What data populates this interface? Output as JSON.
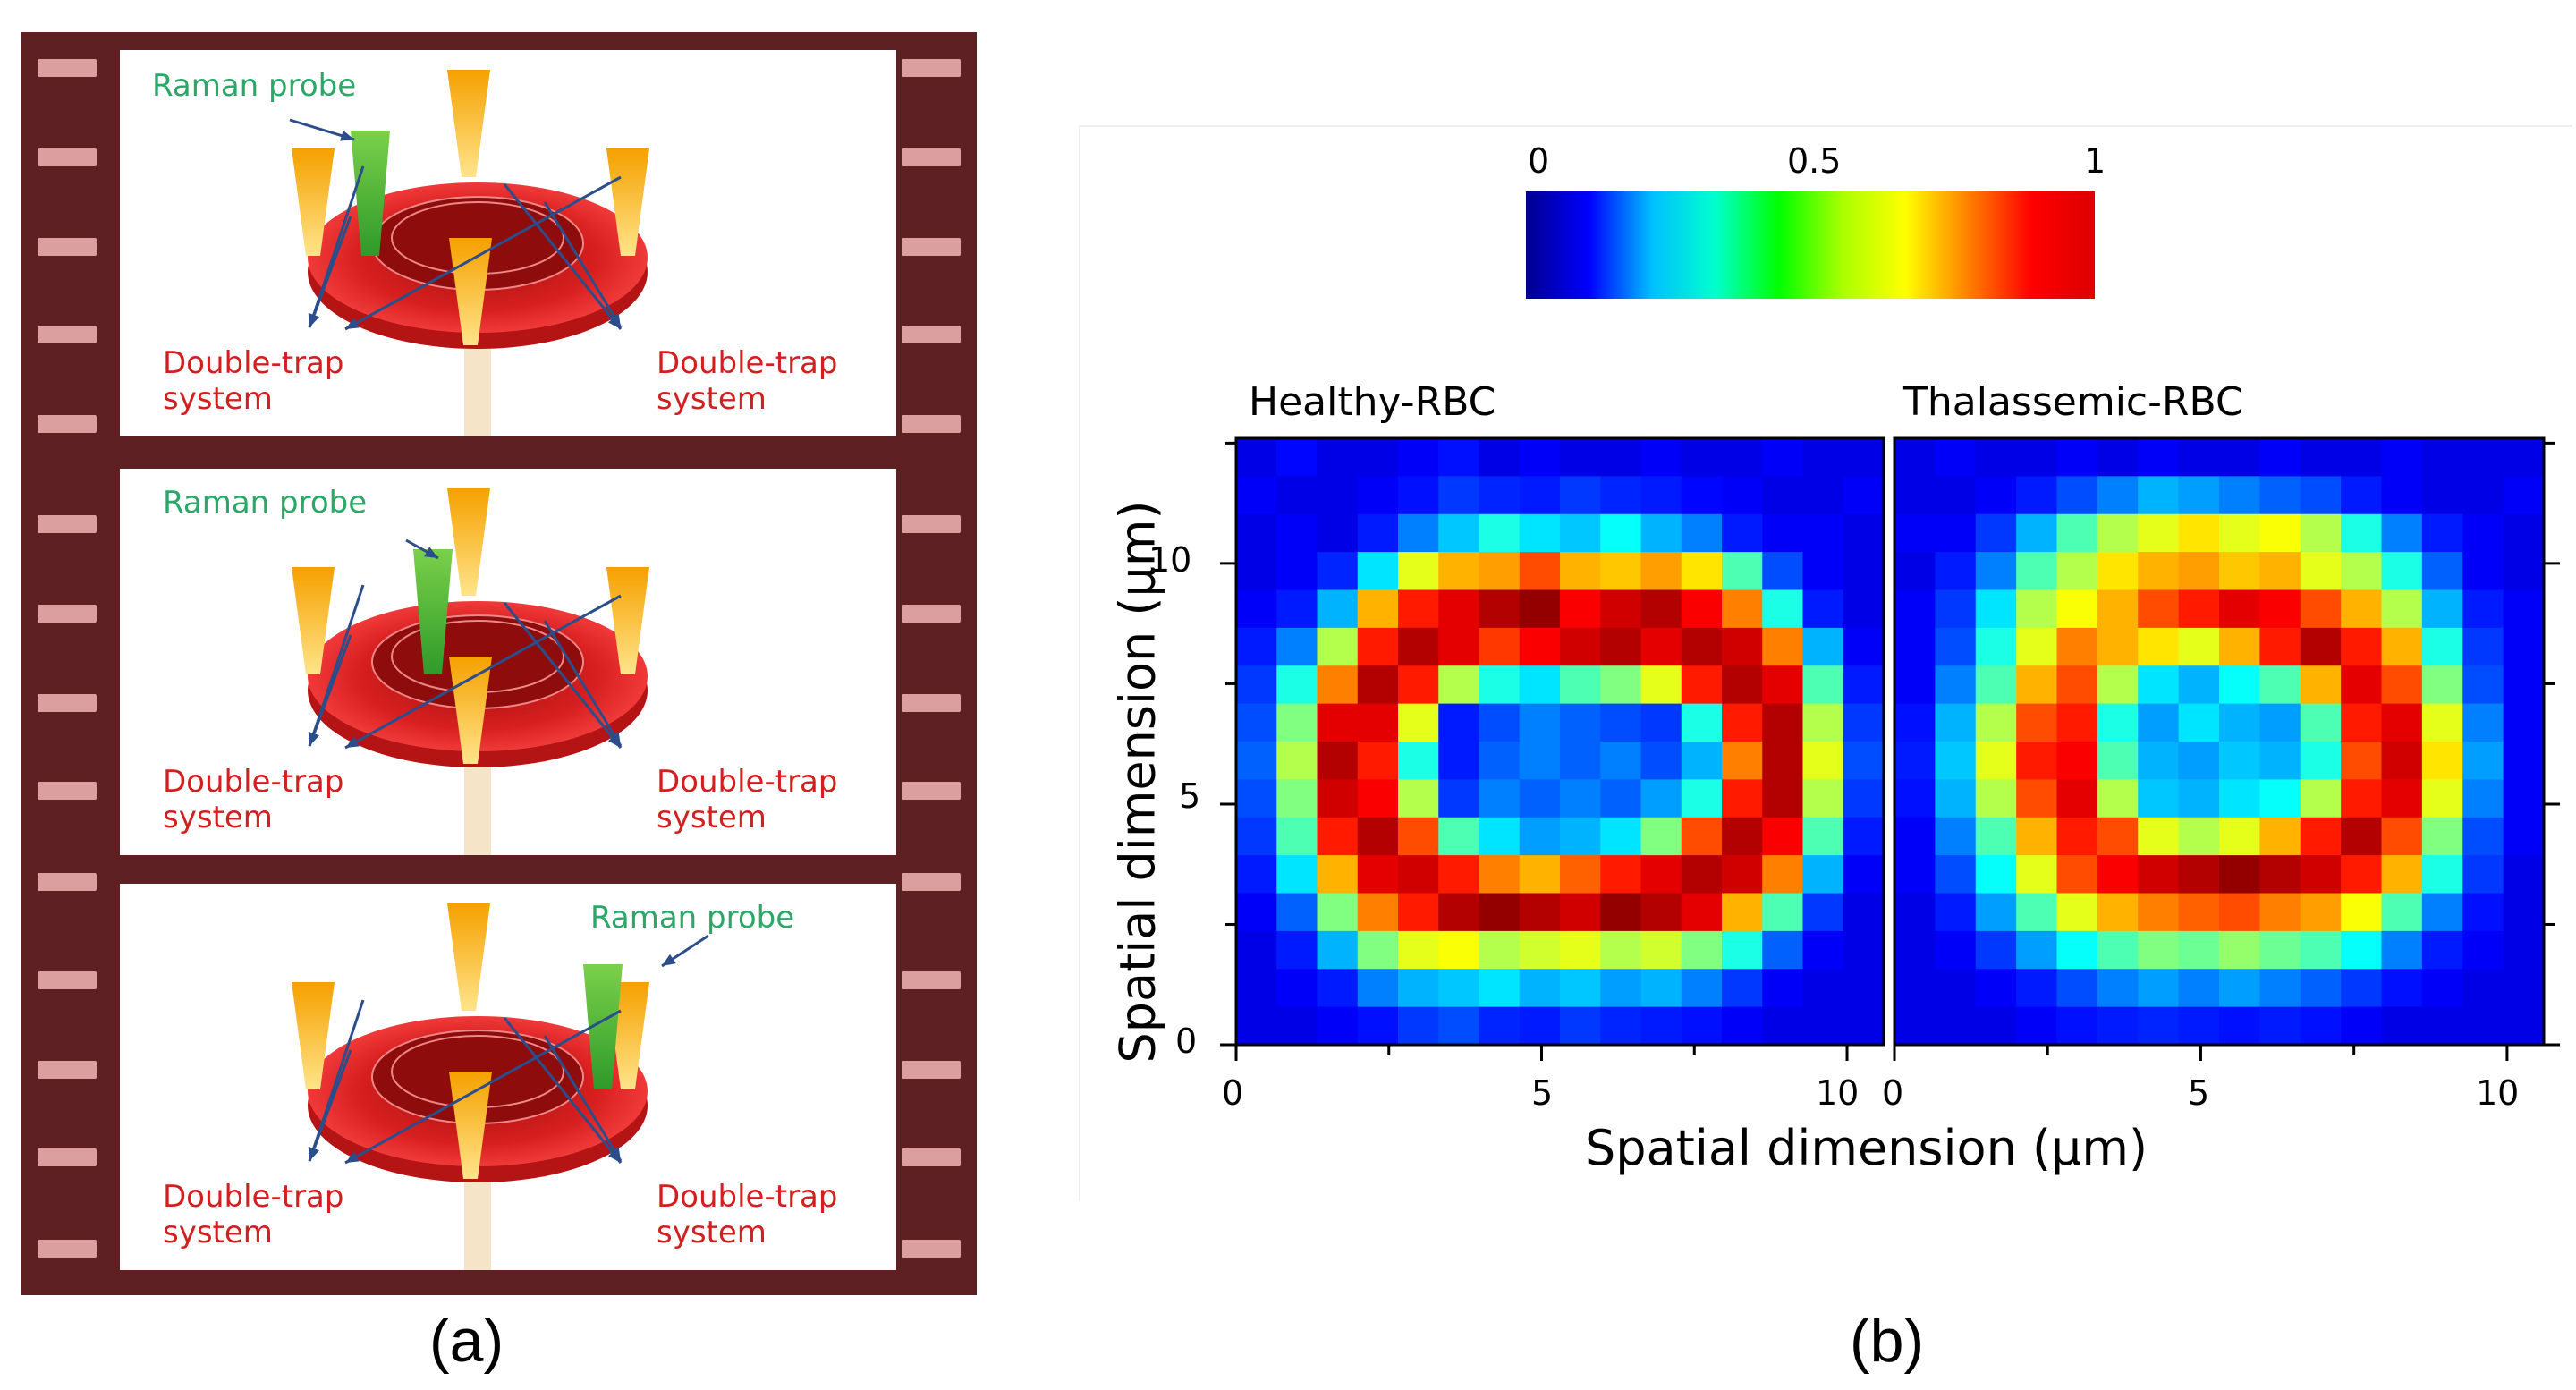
{
  "panel_a": {
    "caption": "(a)",
    "frames": [
      {
        "raman_label": "Raman probe",
        "trap_left": [
          "Double-trap",
          "system"
        ],
        "trap_right": [
          "Double-trap",
          "system"
        ]
      },
      {
        "raman_label": "Raman probe",
        "trap_left": [
          "Double-trap",
          "system"
        ],
        "trap_right": [
          "Double-trap",
          "system"
        ]
      },
      {
        "raman_label": "Raman probe",
        "trap_left": [
          "Double-trap",
          "system"
        ],
        "trap_right": [
          "Double-trap",
          "system"
        ]
      }
    ]
  },
  "panel_b": {
    "caption": "(b)",
    "colorbar": {
      "ticks": [
        "0",
        "0.5",
        "1"
      ],
      "colormap": "jet"
    },
    "xlabel": "Spatial dimension (μm)",
    "ylabel": "Spatial dimension (μm)",
    "x_ticks": [
      "0",
      "5",
      "10"
    ],
    "y_ticks": [
      "0",
      "5",
      "10"
    ]
  },
  "chart_data": [
    {
      "type": "heatmap",
      "title": "Healthy-RBC",
      "xlabel": "Spatial dimension (μm)",
      "ylabel": "Spatial dimension (μm)",
      "xlim": [
        0,
        10.6
      ],
      "ylim": [
        0,
        12.6
      ],
      "zlim": [
        0,
        1
      ],
      "grid": [
        [
          0.1,
          0.13,
          0.1,
          0.1,
          0.12,
          0.14,
          0.1,
          0.12,
          0.1,
          0.1,
          0.12,
          0.1,
          0.1,
          0.12,
          0.1,
          0.1
        ],
        [
          0.12,
          0.1,
          0.1,
          0.12,
          0.14,
          0.18,
          0.16,
          0.15,
          0.18,
          0.16,
          0.15,
          0.13,
          0.12,
          0.1,
          0.1,
          0.12
        ],
        [
          0.1,
          0.12,
          0.1,
          0.15,
          0.25,
          0.32,
          0.4,
          0.35,
          0.32,
          0.38,
          0.3,
          0.25,
          0.15,
          0.12,
          0.12,
          0.1
        ],
        [
          0.1,
          0.12,
          0.16,
          0.35,
          0.6,
          0.7,
          0.72,
          0.8,
          0.7,
          0.68,
          0.72,
          0.65,
          0.45,
          0.2,
          0.12,
          0.1
        ],
        [
          0.12,
          0.15,
          0.3,
          0.7,
          0.85,
          0.9,
          0.95,
          0.98,
          0.88,
          0.92,
          0.95,
          0.88,
          0.75,
          0.4,
          0.15,
          0.1
        ],
        [
          0.15,
          0.25,
          0.55,
          0.85,
          0.95,
          0.9,
          0.82,
          0.88,
          0.92,
          0.95,
          0.9,
          0.95,
          0.92,
          0.75,
          0.3,
          0.12
        ],
        [
          0.18,
          0.4,
          0.75,
          0.95,
          0.85,
          0.55,
          0.4,
          0.35,
          0.45,
          0.5,
          0.6,
          0.85,
          0.95,
          0.9,
          0.45,
          0.15
        ],
        [
          0.2,
          0.5,
          0.9,
          0.9,
          0.6,
          0.15,
          0.2,
          0.25,
          0.22,
          0.2,
          0.18,
          0.4,
          0.85,
          0.95,
          0.55,
          0.18
        ],
        [
          0.22,
          0.55,
          0.95,
          0.85,
          0.4,
          0.15,
          0.22,
          0.25,
          0.22,
          0.25,
          0.2,
          0.3,
          0.75,
          0.95,
          0.6,
          0.2
        ],
        [
          0.2,
          0.5,
          0.92,
          0.88,
          0.55,
          0.18,
          0.25,
          0.22,
          0.25,
          0.22,
          0.28,
          0.4,
          0.85,
          0.95,
          0.55,
          0.18
        ],
        [
          0.18,
          0.45,
          0.85,
          0.95,
          0.8,
          0.45,
          0.35,
          0.28,
          0.3,
          0.35,
          0.5,
          0.8,
          0.95,
          0.88,
          0.45,
          0.15
        ],
        [
          0.15,
          0.35,
          0.7,
          0.9,
          0.92,
          0.85,
          0.75,
          0.7,
          0.78,
          0.85,
          0.9,
          0.95,
          0.92,
          0.75,
          0.3,
          0.12
        ],
        [
          0.12,
          0.22,
          0.5,
          0.75,
          0.85,
          0.95,
          0.98,
          0.95,
          0.92,
          0.98,
          0.95,
          0.9,
          0.7,
          0.45,
          0.18,
          0.1
        ],
        [
          0.1,
          0.15,
          0.3,
          0.5,
          0.6,
          0.62,
          0.55,
          0.58,
          0.6,
          0.55,
          0.58,
          0.5,
          0.4,
          0.22,
          0.12,
          0.1
        ],
        [
          0.1,
          0.12,
          0.15,
          0.25,
          0.3,
          0.32,
          0.35,
          0.3,
          0.32,
          0.28,
          0.3,
          0.25,
          0.18,
          0.12,
          0.1,
          0.1
        ],
        [
          0.1,
          0.1,
          0.12,
          0.14,
          0.18,
          0.2,
          0.16,
          0.15,
          0.18,
          0.16,
          0.15,
          0.14,
          0.12,
          0.1,
          0.1,
          0.1
        ]
      ]
    },
    {
      "type": "heatmap",
      "title": "Thalassemic-RBC",
      "xlabel": "Spatial dimension (μm)",
      "ylabel": "Spatial dimension (μm)",
      "xlim": [
        0,
        10.6
      ],
      "ylim": [
        0,
        12.6
      ],
      "zlim": [
        0,
        1
      ],
      "grid": [
        [
          0.1,
          0.12,
          0.1,
          0.1,
          0.12,
          0.1,
          0.12,
          0.1,
          0.1,
          0.12,
          0.1,
          0.1,
          0.12,
          0.1,
          0.1,
          0.1
        ],
        [
          0.1,
          0.1,
          0.12,
          0.15,
          0.2,
          0.25,
          0.3,
          0.28,
          0.25,
          0.22,
          0.2,
          0.15,
          0.12,
          0.1,
          0.1,
          0.12
        ],
        [
          0.12,
          0.12,
          0.18,
          0.3,
          0.45,
          0.55,
          0.6,
          0.65,
          0.6,
          0.62,
          0.55,
          0.4,
          0.25,
          0.15,
          0.12,
          0.1
        ],
        [
          0.1,
          0.15,
          0.25,
          0.45,
          0.55,
          0.65,
          0.7,
          0.72,
          0.68,
          0.7,
          0.6,
          0.55,
          0.4,
          0.22,
          0.12,
          0.1
        ],
        [
          0.12,
          0.18,
          0.35,
          0.55,
          0.62,
          0.7,
          0.8,
          0.85,
          0.9,
          0.88,
          0.8,
          0.7,
          0.55,
          0.3,
          0.15,
          0.12
        ],
        [
          0.12,
          0.2,
          0.4,
          0.6,
          0.75,
          0.7,
          0.65,
          0.6,
          0.7,
          0.85,
          0.95,
          0.85,
          0.7,
          0.4,
          0.18,
          0.12
        ],
        [
          0.12,
          0.25,
          0.45,
          0.7,
          0.8,
          0.55,
          0.35,
          0.3,
          0.38,
          0.45,
          0.7,
          0.9,
          0.8,
          0.5,
          0.2,
          0.12
        ],
        [
          0.14,
          0.3,
          0.55,
          0.8,
          0.85,
          0.4,
          0.28,
          0.35,
          0.3,
          0.28,
          0.45,
          0.85,
          0.9,
          0.6,
          0.25,
          0.12
        ],
        [
          0.15,
          0.32,
          0.6,
          0.85,
          0.88,
          0.45,
          0.3,
          0.28,
          0.32,
          0.3,
          0.4,
          0.8,
          0.92,
          0.65,
          0.28,
          0.12
        ],
        [
          0.14,
          0.3,
          0.55,
          0.8,
          0.9,
          0.55,
          0.32,
          0.3,
          0.35,
          0.38,
          0.55,
          0.85,
          0.9,
          0.6,
          0.25,
          0.12
        ],
        [
          0.12,
          0.25,
          0.45,
          0.7,
          0.85,
          0.8,
          0.6,
          0.55,
          0.6,
          0.7,
          0.85,
          0.95,
          0.8,
          0.5,
          0.2,
          0.12
        ],
        [
          0.12,
          0.2,
          0.38,
          0.6,
          0.8,
          0.88,
          0.92,
          0.95,
          0.98,
          0.95,
          0.92,
          0.85,
          0.7,
          0.4,
          0.18,
          0.1
        ],
        [
          0.1,
          0.15,
          0.28,
          0.45,
          0.6,
          0.7,
          0.75,
          0.78,
          0.8,
          0.75,
          0.72,
          0.62,
          0.45,
          0.25,
          0.14,
          0.1
        ],
        [
          0.1,
          0.12,
          0.18,
          0.28,
          0.38,
          0.45,
          0.5,
          0.48,
          0.52,
          0.48,
          0.45,
          0.38,
          0.25,
          0.15,
          0.12,
          0.1
        ],
        [
          0.1,
          0.1,
          0.12,
          0.15,
          0.2,
          0.25,
          0.28,
          0.25,
          0.28,
          0.25,
          0.22,
          0.18,
          0.14,
          0.12,
          0.1,
          0.1
        ],
        [
          0.1,
          0.1,
          0.1,
          0.12,
          0.14,
          0.15,
          0.16,
          0.15,
          0.14,
          0.15,
          0.14,
          0.12,
          0.1,
          0.1,
          0.1,
          0.1
        ]
      ]
    }
  ]
}
